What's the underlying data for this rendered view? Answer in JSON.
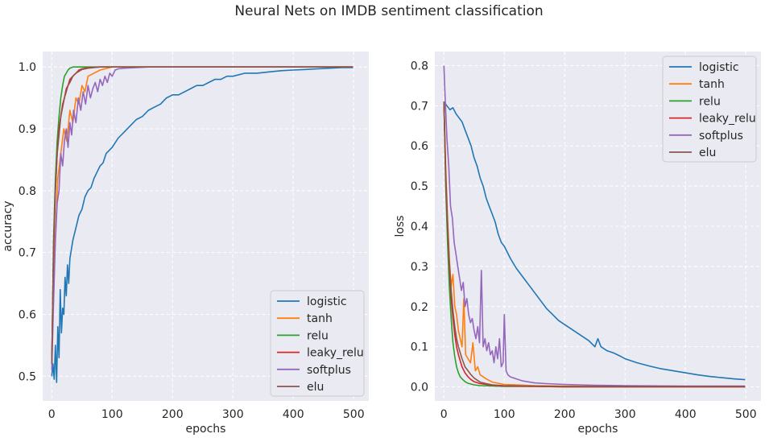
{
  "figure": {
    "suptitle": "Neural Nets on IMDB sentiment classification"
  },
  "colors": {
    "logistic": "#1f77b4",
    "tanh": "#ff7f0e",
    "relu": "#2ca02c",
    "leaky_relu": "#d62728",
    "softplus": "#9467bd",
    "elu": "#8c564b"
  },
  "chart_data": [
    {
      "type": "line",
      "title": "",
      "xlabel": "epochs",
      "ylabel": "accuracy",
      "xlim": [
        -15,
        525
      ],
      "ylim": [
        0.46,
        1.025
      ],
      "xticks": [
        0,
        100,
        200,
        300,
        400,
        500
      ],
      "yticks": [
        0.5,
        0.6,
        0.7,
        0.8,
        0.9,
        1.0
      ],
      "ytick_labels": [
        "0.5",
        "0.6",
        "0.7",
        "0.8",
        "0.9",
        "1.0"
      ],
      "grid": true,
      "legend_position": "lower-right",
      "series": [
        {
          "name": "logistic",
          "x": [
            0,
            2,
            4,
            6,
            8,
            10,
            12,
            14,
            16,
            18,
            20,
            22,
            24,
            26,
            28,
            30,
            35,
            40,
            45,
            50,
            55,
            60,
            65,
            70,
            75,
            80,
            85,
            90,
            95,
            100,
            110,
            120,
            130,
            140,
            150,
            160,
            170,
            180,
            190,
            200,
            210,
            220,
            230,
            240,
            250,
            260,
            270,
            280,
            290,
            300,
            320,
            340,
            360,
            380,
            400,
            420,
            440,
            460,
            480,
            499
          ],
          "y": [
            0.5,
            0.52,
            0.495,
            0.55,
            0.49,
            0.58,
            0.53,
            0.64,
            0.57,
            0.61,
            0.6,
            0.66,
            0.63,
            0.68,
            0.65,
            0.69,
            0.72,
            0.74,
            0.76,
            0.77,
            0.79,
            0.8,
            0.805,
            0.82,
            0.83,
            0.84,
            0.845,
            0.86,
            0.865,
            0.87,
            0.885,
            0.895,
            0.905,
            0.915,
            0.92,
            0.93,
            0.935,
            0.94,
            0.95,
            0.955,
            0.955,
            0.96,
            0.965,
            0.97,
            0.97,
            0.975,
            0.98,
            0.98,
            0.985,
            0.985,
            0.99,
            0.99,
            0.992,
            0.994,
            0.995,
            0.996,
            0.997,
            0.998,
            0.999,
            0.999
          ]
        },
        {
          "name": "tanh",
          "x": [
            0,
            5,
            10,
            15,
            20,
            25,
            30,
            35,
            40,
            45,
            50,
            55,
            60,
            70,
            80,
            100,
            150,
            200,
            300,
            400,
            499
          ],
          "y": [
            0.52,
            0.7,
            0.82,
            0.86,
            0.9,
            0.88,
            0.93,
            0.91,
            0.95,
            0.94,
            0.97,
            0.96,
            0.985,
            0.99,
            0.995,
            1.0,
            1.0,
            1.0,
            1.0,
            1.0,
            1.0
          ]
        },
        {
          "name": "relu",
          "x": [
            0,
            3,
            6,
            9,
            12,
            15,
            18,
            21,
            24,
            27,
            30,
            35,
            40,
            60,
            100,
            200,
            300,
            400,
            499
          ],
          "y": [
            0.52,
            0.72,
            0.82,
            0.88,
            0.92,
            0.95,
            0.97,
            0.985,
            0.99,
            0.995,
            0.998,
            1.0,
            1.0,
            1.0,
            1.0,
            1.0,
            1.0,
            1.0,
            1.0
          ]
        },
        {
          "name": "leaky_relu",
          "x": [
            0,
            3,
            6,
            9,
            12,
            15,
            18,
            21,
            24,
            27,
            30,
            35,
            40,
            45,
            50,
            60,
            80,
            100,
            200,
            300,
            400,
            499
          ],
          "y": [
            0.52,
            0.7,
            0.8,
            0.86,
            0.9,
            0.92,
            0.94,
            0.95,
            0.965,
            0.97,
            0.98,
            0.985,
            0.99,
            0.995,
            0.997,
            0.999,
            1.0,
            1.0,
            1.0,
            1.0,
            1.0,
            1.0
          ]
        },
        {
          "name": "softplus",
          "x": [
            0,
            3,
            6,
            9,
            12,
            15,
            18,
            21,
            24,
            27,
            30,
            33,
            36,
            40,
            44,
            48,
            52,
            56,
            60,
            64,
            68,
            72,
            76,
            80,
            84,
            88,
            92,
            96,
            100,
            105,
            110,
            120,
            140,
            160,
            200,
            300,
            400,
            499
          ],
          "y": [
            0.51,
            0.62,
            0.72,
            0.78,
            0.8,
            0.86,
            0.84,
            0.88,
            0.9,
            0.87,
            0.91,
            0.89,
            0.93,
            0.91,
            0.95,
            0.93,
            0.96,
            0.94,
            0.97,
            0.95,
            0.965,
            0.975,
            0.96,
            0.98,
            0.97,
            0.985,
            0.975,
            0.99,
            0.985,
            0.995,
            0.997,
            0.998,
            0.999,
            1.0,
            1.0,
            1.0,
            1.0,
            1.0
          ]
        },
        {
          "name": "elu",
          "x": [
            0,
            3,
            6,
            9,
            12,
            15,
            18,
            21,
            24,
            27,
            30,
            35,
            40,
            45,
            50,
            60,
            80,
            100,
            200,
            300,
            400,
            499
          ],
          "y": [
            0.52,
            0.71,
            0.8,
            0.86,
            0.89,
            0.92,
            0.935,
            0.95,
            0.96,
            0.97,
            0.975,
            0.985,
            0.99,
            0.993,
            0.996,
            0.998,
            1.0,
            1.0,
            1.0,
            1.0,
            1.0,
            1.0
          ]
        }
      ]
    },
    {
      "type": "line",
      "title": "",
      "xlabel": "epochs",
      "ylabel": "loss",
      "xlim": [
        -15,
        525
      ],
      "ylim": [
        -0.035,
        0.835
      ],
      "xticks": [
        0,
        100,
        200,
        300,
        400,
        500
      ],
      "yticks": [
        0.0,
        0.1,
        0.2,
        0.3,
        0.4,
        0.5,
        0.6,
        0.7,
        0.8
      ],
      "ytick_labels": [
        "0.0",
        "0.1",
        "0.2",
        "0.3",
        "0.4",
        "0.5",
        "0.6",
        "0.7",
        "0.8"
      ],
      "grid": true,
      "legend_position": "upper-right",
      "series": [
        {
          "name": "logistic",
          "x": [
            0,
            5,
            10,
            15,
            20,
            25,
            30,
            35,
            40,
            45,
            50,
            55,
            60,
            65,
            70,
            75,
            80,
            85,
            90,
            95,
            100,
            110,
            120,
            130,
            140,
            150,
            160,
            170,
            180,
            190,
            200,
            210,
            220,
            230,
            240,
            250,
            255,
            260,
            270,
            280,
            290,
            300,
            320,
            340,
            360,
            380,
            400,
            420,
            440,
            460,
            480,
            499
          ],
          "y": [
            0.71,
            0.7,
            0.69,
            0.695,
            0.68,
            0.67,
            0.66,
            0.64,
            0.62,
            0.6,
            0.57,
            0.55,
            0.52,
            0.5,
            0.47,
            0.45,
            0.43,
            0.41,
            0.38,
            0.36,
            0.35,
            0.32,
            0.295,
            0.275,
            0.255,
            0.235,
            0.215,
            0.195,
            0.18,
            0.165,
            0.155,
            0.145,
            0.135,
            0.125,
            0.115,
            0.1,
            0.12,
            0.1,
            0.09,
            0.085,
            0.078,
            0.07,
            0.06,
            0.052,
            0.045,
            0.04,
            0.035,
            0.03,
            0.026,
            0.023,
            0.02,
            0.018
          ]
        },
        {
          "name": "tanh",
          "x": [
            0,
            3,
            6,
            9,
            12,
            15,
            18,
            21,
            24,
            27,
            30,
            33,
            36,
            40,
            44,
            48,
            52,
            56,
            60,
            70,
            80,
            100,
            150,
            200,
            300,
            400,
            499
          ],
          "y": [
            0.71,
            0.55,
            0.42,
            0.32,
            0.25,
            0.28,
            0.2,
            0.18,
            0.14,
            0.12,
            0.1,
            0.22,
            0.08,
            0.07,
            0.06,
            0.11,
            0.04,
            0.05,
            0.03,
            0.02,
            0.012,
            0.006,
            0.003,
            0.002,
            0.001,
            0.001,
            0.001
          ]
        },
        {
          "name": "relu",
          "x": [
            0,
            3,
            6,
            9,
            12,
            15,
            18,
            21,
            24,
            27,
            30,
            35,
            40,
            50,
            60,
            80,
            100,
            150,
            200,
            300,
            400,
            499
          ],
          "y": [
            0.71,
            0.5,
            0.36,
            0.25,
            0.17,
            0.11,
            0.075,
            0.05,
            0.035,
            0.025,
            0.02,
            0.013,
            0.009,
            0.005,
            0.003,
            0.002,
            0.001,
            0.001,
            0.0,
            0.0,
            0.0,
            0.0
          ]
        },
        {
          "name": "leaky_relu",
          "x": [
            0,
            3,
            6,
            9,
            12,
            15,
            18,
            21,
            24,
            27,
            30,
            35,
            40,
            45,
            50,
            60,
            80,
            100,
            150,
            200,
            300,
            400,
            499
          ],
          "y": [
            0.71,
            0.52,
            0.4,
            0.3,
            0.22,
            0.17,
            0.13,
            0.1,
            0.08,
            0.065,
            0.05,
            0.035,
            0.025,
            0.018,
            0.013,
            0.008,
            0.004,
            0.002,
            0.001,
            0.0,
            0.0,
            0.0,
            0.0
          ]
        },
        {
          "name": "softplus",
          "x": [
            0,
            2,
            5,
            8,
            11,
            14,
            17,
            20,
            23,
            26,
            29,
            32,
            35,
            38,
            41,
            44,
            47,
            50,
            53,
            56,
            59,
            62,
            65,
            68,
            71,
            74,
            77,
            80,
            83,
            86,
            89,
            92,
            95,
            98,
            100,
            103,
            106,
            110,
            120,
            130,
            150,
            170,
            200,
            250,
            300,
            400,
            499
          ],
          "y": [
            0.8,
            0.72,
            0.62,
            0.55,
            0.45,
            0.42,
            0.36,
            0.33,
            0.3,
            0.27,
            0.24,
            0.26,
            0.2,
            0.22,
            0.18,
            0.16,
            0.17,
            0.14,
            0.12,
            0.15,
            0.11,
            0.29,
            0.1,
            0.12,
            0.09,
            0.11,
            0.08,
            0.09,
            0.06,
            0.1,
            0.07,
            0.12,
            0.05,
            0.06,
            0.18,
            0.04,
            0.03,
            0.025,
            0.02,
            0.015,
            0.01,
            0.008,
            0.006,
            0.004,
            0.003,
            0.002,
            0.002
          ]
        },
        {
          "name": "elu",
          "x": [
            0,
            3,
            6,
            9,
            12,
            15,
            18,
            21,
            24,
            27,
            30,
            35,
            40,
            45,
            50,
            55,
            60,
            70,
            80,
            100,
            150,
            200,
            300,
            400,
            499
          ],
          "y": [
            0.71,
            0.53,
            0.41,
            0.31,
            0.24,
            0.19,
            0.15,
            0.12,
            0.1,
            0.085,
            0.07,
            0.05,
            0.04,
            0.03,
            0.022,
            0.017,
            0.012,
            0.008,
            0.005,
            0.003,
            0.002,
            0.001,
            0.001,
            0.001,
            0.001
          ]
        }
      ]
    }
  ]
}
